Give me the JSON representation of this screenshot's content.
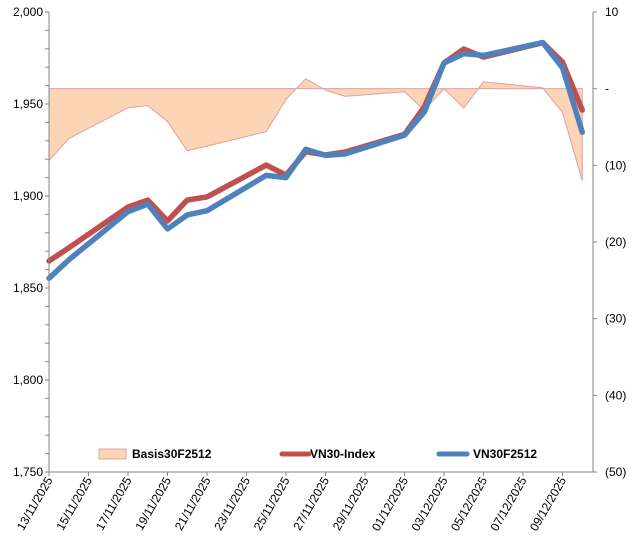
{
  "chart_data": {
    "type": "line",
    "title": "",
    "xlabel": "",
    "ylabel": "",
    "y2label": "",
    "x_axis": {
      "type": "date",
      "start": "2025-11-13",
      "tick_interval_days": 2,
      "tick_labels": [
        "13/11/2025",
        "15/11/2025",
        "17/11/2025",
        "19/11/2025",
        "21/11/2025",
        "23/11/2025",
        "25/11/2025",
        "27/11/2025",
        "29/11/2025",
        "01/12/2025",
        "03/12/2025",
        "05/12/2025",
        "07/12/2025",
        "09/12/2025"
      ]
    },
    "y_axis_left": {
      "ylim": [
        1750,
        2000
      ],
      "major_step": 50,
      "minor_step": 10,
      "tick_labels": [
        "1,750",
        "1,800",
        "1,850",
        "1,900",
        "1,950",
        "2,000"
      ]
    },
    "y_axis_right": {
      "ylim": [
        -50,
        10
      ],
      "major_step": 10,
      "tick_labels": [
        "(50)",
        "(40)",
        "(30)",
        "(20)",
        "(10)",
        "-",
        "10"
      ]
    },
    "grid": false,
    "legend": "bottom-inside",
    "x": [
      "2025-11-13",
      "2025-11-14",
      "2025-11-17",
      "2025-11-18",
      "2025-11-19",
      "2025-11-20",
      "2025-11-21",
      "2025-11-24",
      "2025-11-25",
      "2025-11-26",
      "2025-11-27",
      "2025-11-28",
      "2025-12-01",
      "2025-12-02",
      "2025-12-03",
      "2025-12-04",
      "2025-12-05",
      "2025-12-08",
      "2025-12-09",
      "2025-12-10"
    ],
    "series": [
      {
        "name": "Basis30F2512",
        "type": "area",
        "axis": "right",
        "color": "#FBD5B5",
        "stroke": "#E0A0A0",
        "values": [
          -9.4,
          -6.5,
          -2.5,
          -2.2,
          -4.3,
          -8.1,
          -7.5,
          -5.6,
          -1.4,
          1.3,
          -0.2,
          -1.0,
          -0.4,
          -2.8,
          0.0,
          -2.5,
          0.9,
          0.1,
          -3.1,
          -12.0
        ]
      },
      {
        "name": "VN30-Index",
        "type": "line",
        "axis": "left",
        "color": "#C0504D",
        "values": [
          1864.7,
          1871.8,
          1894.0,
          1897.8,
          1886.4,
          1897.8,
          1899.5,
          1916.8,
          1911.4,
          1924.1,
          1922.3,
          1923.9,
          1933.5,
          1948.4,
          1972.3,
          1979.9,
          1975.5,
          1983.3,
          1972.8,
          1946.7
        ]
      },
      {
        "name": "VN30F2512",
        "type": "line",
        "axis": "left",
        "color": "#4F81BD",
        "values": [
          1855.3,
          1865.3,
          1891.5,
          1895.6,
          1882.1,
          1889.7,
          1892.0,
          1911.2,
          1910.0,
          1925.4,
          1922.1,
          1922.9,
          1933.1,
          1945.6,
          1972.3,
          1977.4,
          1976.4,
          1983.4,
          1969.7,
          1934.7
        ]
      }
    ]
  }
}
